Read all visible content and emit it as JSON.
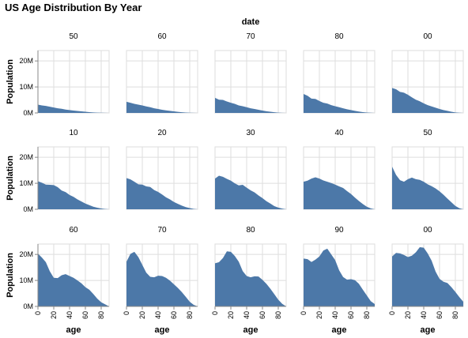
{
  "chart_data": {
    "type": "area",
    "title": "US Age Distribution By Year",
    "facet_title": "date",
    "xlabel": "age",
    "ylabel": "Population",
    "x_ticks": [
      0,
      20,
      40,
      60,
      80
    ],
    "y_ticks": [
      0,
      10000000,
      20000000
    ],
    "y_tick_labels": [
      "0M",
      "10M",
      "20M"
    ],
    "xlim": [
      0,
      90
    ],
    "ylim": [
      0,
      24000000
    ],
    "grid": true,
    "color": "#4c78a8",
    "age": [
      0,
      5,
      10,
      15,
      20,
      25,
      30,
      35,
      40,
      45,
      50,
      55,
      60,
      65,
      70,
      75,
      80,
      85,
      90
    ],
    "panels": [
      {
        "label": "50",
        "values": [
          3.2,
          2.9,
          2.7,
          2.4,
          2.1,
          1.8,
          1.6,
          1.3,
          1.1,
          0.9,
          0.75,
          0.6,
          0.45,
          0.32,
          0.2,
          0.12,
          0.06,
          0.03,
          0.0
        ]
      },
      {
        "label": "60",
        "values": [
          4.3,
          3.9,
          3.5,
          3.2,
          2.9,
          2.5,
          2.2,
          1.8,
          1.5,
          1.2,
          1.0,
          0.8,
          0.6,
          0.4,
          0.28,
          0.16,
          0.08,
          0.04,
          0.0
        ]
      },
      {
        "label": "70",
        "values": [
          5.8,
          5.1,
          5.0,
          4.4,
          3.9,
          3.5,
          2.9,
          2.6,
          2.2,
          1.8,
          1.5,
          1.2,
          0.9,
          0.65,
          0.45,
          0.25,
          0.12,
          0.05,
          0.0
        ]
      },
      {
        "label": "80",
        "values": [
          7.3,
          6.6,
          5.5,
          5.4,
          4.6,
          3.9,
          3.6,
          3.0,
          2.6,
          2.2,
          1.8,
          1.4,
          1.1,
          0.8,
          0.55,
          0.3,
          0.15,
          0.06,
          0.0
        ]
      },
      {
        "label": "00",
        "values": [
          9.6,
          9.1,
          8.1,
          7.8,
          7.0,
          6.0,
          5.1,
          4.5,
          3.7,
          3.0,
          2.5,
          2.0,
          1.5,
          1.1,
          0.8,
          0.45,
          0.2,
          0.08,
          0.0
        ]
      },
      {
        "label": "10",
        "values": [
          10.8,
          10.2,
          9.5,
          9.4,
          9.3,
          8.5,
          7.2,
          6.6,
          5.5,
          4.8,
          3.8,
          3.0,
          2.2,
          1.6,
          1.0,
          0.6,
          0.3,
          0.1,
          0.0
        ]
      },
      {
        "label": "20",
        "values": [
          12.0,
          11.5,
          10.6,
          9.6,
          9.5,
          8.8,
          8.6,
          7.4,
          6.7,
          5.7,
          4.6,
          3.8,
          2.8,
          2.1,
          1.4,
          0.85,
          0.45,
          0.15,
          0.0
        ]
      },
      {
        "label": "30",
        "values": [
          11.8,
          12.9,
          12.5,
          11.7,
          11.0,
          10.0,
          9.2,
          9.4,
          8.3,
          7.3,
          6.5,
          5.3,
          4.3,
          3.1,
          2.2,
          1.2,
          0.65,
          0.25,
          0.0
        ]
      },
      {
        "label": "40",
        "values": [
          10.6,
          11.0,
          11.8,
          12.3,
          11.8,
          11.1,
          10.6,
          10.1,
          9.5,
          8.8,
          8.2,
          7.0,
          5.9,
          4.5,
          3.2,
          2.0,
          1.0,
          0.35,
          0.0
        ]
      },
      {
        "label": "50",
        "values": [
          16.4,
          13.2,
          11.2,
          10.6,
          11.6,
          12.2,
          11.6,
          11.3,
          10.6,
          9.6,
          8.9,
          8.0,
          6.9,
          5.6,
          4.1,
          2.7,
          1.3,
          0.4,
          0.0
        ]
      },
      {
        "label": "60",
        "values": [
          20.3,
          18.8,
          17.0,
          13.5,
          11.0,
          10.9,
          12.0,
          12.4,
          11.7,
          11.0,
          10.0,
          8.9,
          7.4,
          6.4,
          4.8,
          3.0,
          1.6,
          0.8,
          0.0
        ]
      },
      {
        "label": "70",
        "values": [
          17.2,
          20.2,
          21.0,
          19.0,
          16.0,
          13.0,
          11.4,
          11.2,
          11.8,
          11.7,
          11.0,
          9.9,
          8.5,
          7.1,
          5.5,
          3.7,
          1.8,
          0.6,
          0.0
        ]
      },
      {
        "label": "80",
        "values": [
          16.6,
          17.0,
          18.6,
          21.2,
          21.0,
          19.4,
          17.2,
          13.6,
          11.7,
          11.2,
          11.6,
          11.5,
          10.2,
          8.7,
          6.8,
          4.7,
          2.6,
          1.0,
          0.0
        ]
      },
      {
        "label": "90",
        "values": [
          18.4,
          18.2,
          17.1,
          18.0,
          19.2,
          21.5,
          22.2,
          20.0,
          17.8,
          13.9,
          11.3,
          10.3,
          10.5,
          10.1,
          8.7,
          6.4,
          4.2,
          2.0,
          0.9
        ]
      },
      {
        "label": "00",
        "values": [
          19.2,
          20.6,
          20.4,
          19.8,
          19.0,
          19.5,
          20.8,
          22.8,
          22.6,
          20.4,
          17.6,
          13.4,
          10.6,
          9.5,
          9.0,
          7.4,
          5.6,
          3.6,
          1.8
        ]
      }
    ]
  }
}
